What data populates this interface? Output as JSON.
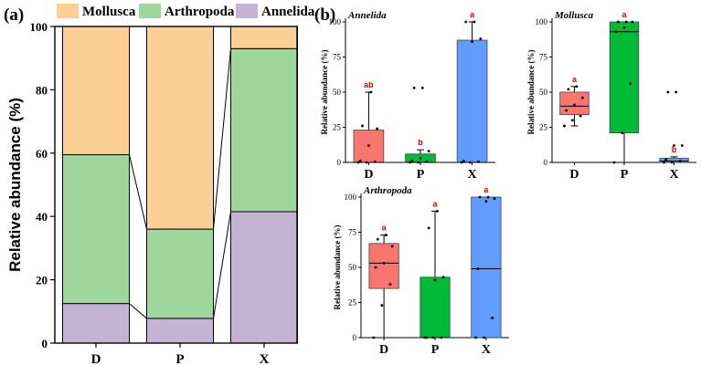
{
  "panel_a_label": "(a)",
  "panel_b_label": "(b)",
  "chart_data": [
    {
      "type": "stacked_bar",
      "title": "",
      "ylabel": "Relative abundance (%)",
      "xlabel": "",
      "categories": [
        "D",
        "P",
        "X"
      ],
      "ylim": [
        0,
        100
      ],
      "yticks": [
        0,
        20,
        40,
        60,
        80,
        100
      ],
      "legend_position": "top",
      "series": [
        {
          "name": "Annelida",
          "color": "#c5b3d6",
          "values": [
            12.5,
            7.8,
            41.5
          ]
        },
        {
          "name": "Arthropoda",
          "color": "#9fd69b",
          "values": [
            47.0,
            28.2,
            51.5
          ]
        },
        {
          "name": "Mollusca",
          "color": "#fccf96",
          "values": [
            40.5,
            64.0,
            7.0
          ]
        }
      ],
      "legend_order": [
        "Mollusca",
        "Arthropoda",
        "Annelida"
      ]
    },
    {
      "type": "box",
      "title": "Annelida",
      "ylabel": "Relative abundance (%)",
      "categories": [
        "D",
        "P",
        "X"
      ],
      "ylim": [
        0,
        100
      ],
      "yticks": [
        0,
        25,
        50,
        75,
        100
      ],
      "boxes": [
        {
          "cat": "D",
          "color": "#f8766d",
          "q1": 0,
          "median": 0,
          "q3": 23,
          "whisker_low": 0,
          "whisker_high": 50,
          "sig": "ab",
          "points": [
            0,
            0,
            0.5,
            1,
            12,
            24,
            26,
            50
          ]
        },
        {
          "cat": "P",
          "color": "#00ba38",
          "q1": 0,
          "median": 0,
          "q3": 6,
          "whisker_low": 0,
          "whisker_high": 9,
          "sig": "b",
          "points": [
            0,
            0,
            0.5,
            1,
            3,
            8,
            53,
            53
          ]
        },
        {
          "cat": "X",
          "color": "#619cff",
          "q1": 0,
          "median": 0,
          "q3": 87,
          "whisker_low": 0,
          "whisker_high": 100,
          "sig": "a",
          "points": [
            0,
            0,
            0.5,
            1,
            86,
            88,
            100,
            100
          ]
        }
      ]
    },
    {
      "type": "box",
      "title": "Mollusca",
      "ylabel": "Relative abundance (%)",
      "categories": [
        "D",
        "P",
        "X"
      ],
      "ylim": [
        0,
        100
      ],
      "yticks": [
        0,
        25,
        50,
        75,
        100
      ],
      "boxes": [
        {
          "cat": "D",
          "color": "#f8766d",
          "q1": 34,
          "median": 40,
          "q3": 50,
          "whisker_low": 26,
          "whisker_high": 54,
          "sig": "a",
          "points": [
            26,
            30,
            33,
            37,
            41,
            46,
            52,
            54
          ]
        },
        {
          "cat": "P",
          "color": "#00ba38",
          "q1": 21,
          "median": 93,
          "q3": 100,
          "whisker_low": 0,
          "whisker_high": 100,
          "sig": "a",
          "points": [
            0,
            21,
            56,
            93,
            96,
            100,
            100,
            100
          ]
        },
        {
          "cat": "X",
          "color": "#619cff",
          "q1": 0,
          "median": 1,
          "q3": 3,
          "whisker_low": 0,
          "whisker_high": 4,
          "sig": "b",
          "points": [
            0,
            0,
            1,
            2,
            12,
            12,
            50,
            50
          ]
        }
      ]
    },
    {
      "type": "box",
      "title": "Arthropoda",
      "ylabel": "Relative abundance (%)",
      "categories": [
        "D",
        "P",
        "X"
      ],
      "ylim": [
        0,
        100
      ],
      "yticks": [
        0,
        25,
        50,
        75,
        100
      ],
      "boxes": [
        {
          "cat": "D",
          "color": "#f8766d",
          "q1": 35,
          "median": 53,
          "q3": 67,
          "whisker_low": 0,
          "whisker_high": 73,
          "sig": "a",
          "points": [
            0,
            23,
            38,
            50,
            53,
            65,
            70,
            73
          ]
        },
        {
          "cat": "P",
          "color": "#00ba38",
          "q1": 0,
          "median": 0,
          "q3": 43,
          "whisker_low": 0,
          "whisker_high": 90,
          "sig": "a",
          "points": [
            0,
            0,
            0,
            0,
            41,
            43,
            78,
            90
          ]
        },
        {
          "cat": "X",
          "color": "#619cff",
          "q1": 0,
          "median": 49,
          "q3": 100,
          "whisker_low": 0,
          "whisker_high": 100,
          "sig": "a",
          "points": [
            0,
            0,
            14,
            49,
            97,
            99,
            100,
            100
          ]
        }
      ]
    }
  ]
}
